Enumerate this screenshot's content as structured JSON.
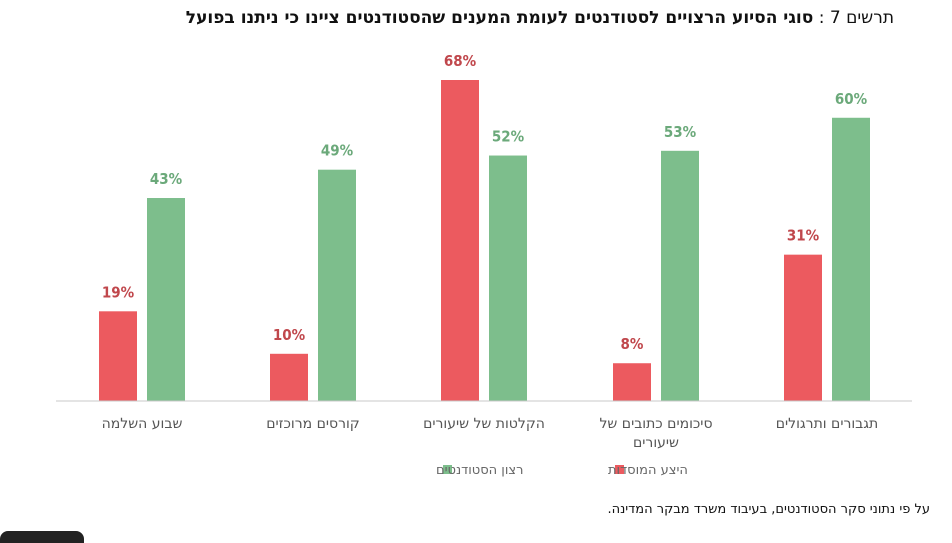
{
  "figure": {
    "number_label": "תרשים 7 :",
    "title": "סוגי הסיוע הרצויים לסטודנטים לעומת המענים שהסטודנטים ציינו כי ניתנו בפועל",
    "source": "על פי נתוני סקר הסטודנטים, בעיבוד משרד מבקר המדינה."
  },
  "chart_data": {
    "type": "bar",
    "categories": [
      [
        "שבוע השלמה"
      ],
      [
        "קורסים מרוכזים"
      ],
      [
        "הקלטות של שיעורים"
      ],
      [
        "סיכומים כתובים של",
        "שיעורים"
      ],
      [
        "תגבורים ותרגולים"
      ]
    ],
    "series": [
      {
        "name": "היצע המוסדות",
        "values": [
          19,
          10,
          68,
          8,
          31
        ],
        "labels": [
          "19%",
          "10%",
          "68%",
          "8%",
          "31%"
        ],
        "color": "#ec5a5f"
      },
      {
        "name": "רצון הסטודנטים",
        "values": [
          43,
          49,
          52,
          53,
          60
        ],
        "labels": [
          "43%",
          "49%",
          "52%",
          "53%",
          "60%"
        ],
        "color": "#7dbe8c"
      }
    ],
    "ylim": [
      0,
      70
    ],
    "grid": false,
    "legend": "bottom",
    "label_color_series0": "#c0474c",
    "label_color_series1": "#6ba97a"
  }
}
